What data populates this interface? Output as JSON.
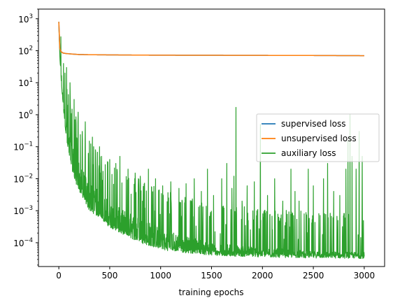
{
  "chart_data": {
    "type": "line",
    "title": "",
    "xlabel": "training epochs",
    "ylabel": "",
    "xlim": [
      -200,
      3200
    ],
    "ylim": [
      1.8e-05,
      2000
    ],
    "yscale": "log",
    "grid": false,
    "legend_position": "center right",
    "xticks": [
      0,
      500,
      1000,
      1500,
      2000,
      2500,
      3000
    ],
    "xtick_labels": [
      "0",
      "500",
      "1000",
      "1500",
      "2000",
      "2500",
      "3000"
    ],
    "yticks": [
      0.0001,
      0.001,
      0.01,
      0.1,
      1,
      10,
      100,
      1000
    ],
    "ytick_labels": [
      {
        "base": "10",
        "exp": "−4"
      },
      {
        "base": "10",
        "exp": "−3"
      },
      {
        "base": "10",
        "exp": "−2"
      },
      {
        "base": "10",
        "exp": "−1"
      },
      {
        "base": "10",
        "exp": "0"
      },
      {
        "base": "10",
        "exp": "1"
      },
      {
        "base": "10",
        "exp": "2"
      },
      {
        "base": "10",
        "exp": "3"
      }
    ],
    "series": [
      {
        "name": "supervised loss",
        "color": "#1f77b4",
        "x": [
          0,
          5,
          10,
          20,
          40,
          70,
          100,
          150,
          200,
          300,
          500,
          800,
          1000,
          1500,
          2000,
          2500,
          3000
        ],
        "y": [
          800,
          180,
          120,
          95,
          85,
          82,
          80,
          78,
          76,
          75,
          74,
          73,
          72.5,
          72,
          71.5,
          71,
          70
        ]
      },
      {
        "name": "unsupervised loss",
        "color": "#ff7f0e",
        "x": [
          0,
          5,
          10,
          20,
          40,
          70,
          100,
          150,
          200,
          300,
          500,
          800,
          1000,
          1500,
          2000,
          2500,
          3000
        ],
        "y": [
          800,
          180,
          120,
          95,
          85,
          82,
          80,
          78,
          76,
          75,
          74,
          73,
          72.5,
          72,
          71.5,
          71,
          70
        ]
      },
      {
        "name": "auxiliary loss",
        "color": "#2ca02c",
        "baseline_x": [
          0,
          5,
          10,
          20,
          40,
          60,
          80,
          100,
          150,
          200,
          250,
          300,
          400,
          500,
          600,
          800,
          1000,
          1200,
          1500,
          2000,
          2500,
          3000
        ],
        "baseline_y": [
          800,
          200,
          90,
          30,
          6,
          2,
          0.6,
          0.3,
          0.08,
          0.03,
          0.015,
          0.008,
          0.004,
          0.002,
          0.0012,
          0.0006,
          0.0003,
          0.00018,
          0.0001,
          7e-05,
          5.5e-05,
          5e-05
        ],
        "floor_y": [
          800,
          150,
          60,
          15,
          2,
          0.5,
          0.12,
          0.05,
          0.01,
          0.004,
          0.002,
          0.001,
          0.0006,
          0.0003,
          0.0002,
          0.0001,
          6e-05,
          5e-05,
          4e-05,
          3.5e-05,
          3.3e-05,
          3.2e-05
        ],
        "spikes": [
          [
            45,
            40
          ],
          [
            60,
            20
          ],
          [
            75,
            30
          ],
          [
            90,
            2
          ],
          [
            110,
            10
          ],
          [
            130,
            1.5
          ],
          [
            150,
            3
          ],
          [
            170,
            0.5
          ],
          [
            190,
            1.2
          ],
          [
            230,
            0.3
          ],
          [
            260,
            0.6
          ],
          [
            300,
            0.15
          ],
          [
            330,
            0.2
          ],
          [
            360,
            0.08
          ],
          [
            400,
            0.1
          ],
          [
            420,
            0.05
          ],
          [
            500,
            0.04
          ],
          [
            560,
            0.03
          ],
          [
            600,
            0.05
          ],
          [
            680,
            0.02
          ],
          [
            750,
            0.015
          ],
          [
            800,
            0.012
          ],
          [
            880,
            0.02
          ],
          [
            950,
            0.01
          ],
          [
            1020,
            0.006
          ],
          [
            1100,
            0.008
          ],
          [
            1180,
            0.005
          ],
          [
            1250,
            0.007
          ],
          [
            1330,
            0.01
          ],
          [
            1400,
            0.004
          ],
          [
            1460,
            0.02
          ],
          [
            1520,
            0.003
          ],
          [
            1600,
            0.01
          ],
          [
            1650,
            0.03
          ],
          [
            1700,
            0.005
          ],
          [
            1720,
            0.012
          ],
          [
            1740,
            1.7
          ],
          [
            1800,
            0.002
          ],
          [
            1850,
            0.006
          ],
          [
            1920,
            0.008
          ],
          [
            1980,
            0.5
          ],
          [
            2050,
            0.003
          ],
          [
            2120,
            0.01
          ],
          [
            2200,
            0.002
          ],
          [
            2280,
            0.02
          ],
          [
            2320,
            0.004
          ],
          [
            2360,
            0.002
          ],
          [
            2450,
            0.02
          ],
          [
            2500,
            0.006
          ],
          [
            2600,
            0.01
          ],
          [
            2640,
            0.03
          ],
          [
            2700,
            0.004
          ],
          [
            2760,
            0.003
          ],
          [
            2820,
            0.02
          ],
          [
            2840,
            0.15
          ],
          [
            2860,
            1.0
          ],
          [
            2880,
            0.05
          ],
          [
            2920,
            0.02
          ],
          [
            2950,
            0.3
          ],
          [
            2980,
            0.05
          ]
        ]
      }
    ]
  }
}
